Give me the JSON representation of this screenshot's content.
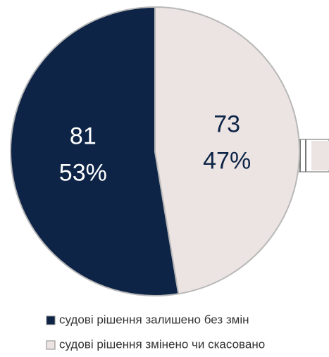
{
  "chart_data": {
    "type": "pie",
    "categories": [
      "судові рішення залишено без змін",
      "судові рішення змінено чи скасовано"
    ],
    "values": [
      81,
      73
    ],
    "percentages": [
      53,
      47
    ],
    "percentage_labels": [
      "53%",
      "47%"
    ],
    "colors": [
      "#0d2447",
      "#ece4e2"
    ],
    "label_colors": [
      "#ffffff",
      "#0d2447"
    ],
    "legend": "bottom"
  }
}
